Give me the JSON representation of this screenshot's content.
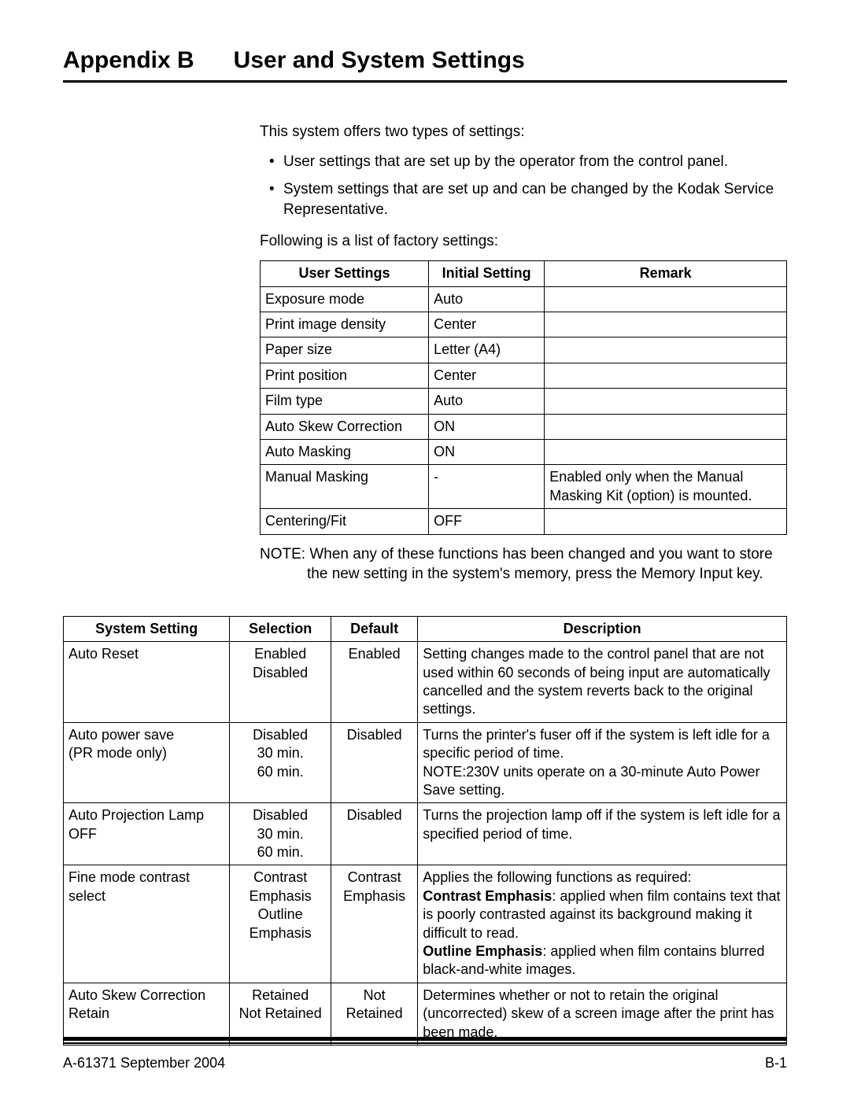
{
  "header": {
    "appendix": "Appendix B",
    "title": "User and System Settings"
  },
  "intro": {
    "lead": "This system offers two types of settings:",
    "bullets": [
      "User settings that are set up by the operator from the control panel.",
      "System settings that are set up and can be changed by the Kodak Service Representative."
    ],
    "following": "Following is a list of factory settings:"
  },
  "user_table": {
    "columns": [
      "User Settings",
      "Initial Setting",
      "Remark"
    ],
    "rows": [
      [
        "Exposure mode",
        "Auto",
        ""
      ],
      [
        "Print image density",
        "Center",
        ""
      ],
      [
        "Paper size",
        "Letter (A4)",
        ""
      ],
      [
        "Print position",
        "Center",
        ""
      ],
      [
        "Film type",
        "Auto",
        ""
      ],
      [
        "Auto Skew Correction",
        "ON",
        ""
      ],
      [
        "Auto Masking",
        "ON",
        ""
      ],
      [
        "Manual Masking",
        "-",
        "Enabled only when the Manual Masking Kit (option) is mounted."
      ],
      [
        "Centering/Fit",
        "OFF",
        ""
      ]
    ]
  },
  "note": "NOTE: When any of these functions has been changed and you want to store the new setting in the system's memory, press the Memory Input key.",
  "sys_table": {
    "columns": [
      "System Setting",
      "Selection",
      "Default",
      "Description"
    ],
    "rows": [
      {
        "setting": "Auto Reset",
        "selection": "Enabled\nDisabled",
        "default": "Enabled",
        "desc_plain": "Setting changes made to the control panel that are not used within 60 seconds of being input are automatically cancelled and the system reverts back to the original settings."
      },
      {
        "setting": "Auto power save\n(PR mode only)",
        "selection": "Disabled\n30 min.\n60 min.",
        "default": "Disabled",
        "desc_plain": "Turns the printer's fuser off if the system is left idle for a specific period of time.\nNOTE:230V units operate on a 30-minute Auto Power Save setting."
      },
      {
        "setting": "Auto Projection Lamp OFF",
        "selection": "Disabled\n30 min.\n60 min.",
        "default": "Disabled",
        "desc_plain": "Turns the projection lamp off if the system is left idle for a specified period of time."
      },
      {
        "setting": "Fine mode contrast select",
        "selection": "Contrast\nEmphasis\nOutline\nEmphasis",
        "default": "Contrast\nEmphasis",
        "desc_rich": {
          "pre": "Applies the following functions as required:",
          "b1": "Contrast Emphasis",
          "t1": ": applied when film contains text that is poorly contrasted against its background making it difficult to read.",
          "b2": "Outline Emphasis",
          "t2": ": applied when film contains blurred black-and-white images."
        }
      },
      {
        "setting": "Auto Skew Correction Retain",
        "selection": "Retained\nNot Retained",
        "default": "Not\nRetained",
        "desc_plain": "Determines whether or not to retain the original (uncorrected) skew of a screen image after the print has been made."
      }
    ]
  },
  "footer": {
    "left": "A-61371   September 2004",
    "right": "B-1"
  }
}
